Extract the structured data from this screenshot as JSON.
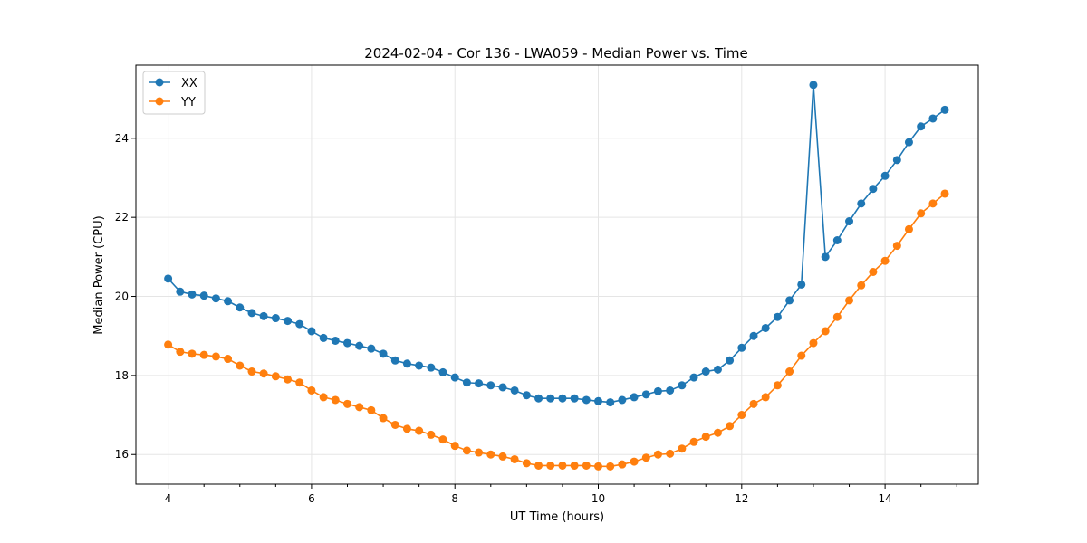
{
  "chart_data": {
    "type": "line",
    "title": "2024-02-04 - Cor 136 - LWA059 - Median Power vs. Time",
    "xlabel": "UT Time (hours)",
    "ylabel": "Median Power (CPU)",
    "xlim": [
      3.55,
      15.3
    ],
    "ylim": [
      15.25,
      25.85
    ],
    "xticks": [
      4,
      6,
      8,
      10,
      12,
      14
    ],
    "yticks": [
      16,
      18,
      20,
      22,
      24
    ],
    "grid": true,
    "legend_position": "top-left",
    "x": [
      4.0,
      4.167,
      4.333,
      4.5,
      4.667,
      4.833,
      5.0,
      5.167,
      5.333,
      5.5,
      5.667,
      5.833,
      6.0,
      6.167,
      6.333,
      6.5,
      6.667,
      6.833,
      7.0,
      7.167,
      7.333,
      7.5,
      7.667,
      7.833,
      8.0,
      8.167,
      8.333,
      8.5,
      8.667,
      8.833,
      9.0,
      9.167,
      9.333,
      9.5,
      9.667,
      9.833,
      10.0,
      10.167,
      10.333,
      10.5,
      10.667,
      10.833,
      11.0,
      11.167,
      11.333,
      11.5,
      11.667,
      11.833,
      12.0,
      12.167,
      12.333,
      12.5,
      12.667,
      12.833,
      13.0,
      13.167,
      13.333,
      13.5,
      13.667,
      13.833,
      14.0,
      14.167,
      14.333,
      14.5,
      14.667,
      14.833
    ],
    "series": [
      {
        "name": "XX",
        "color": "#1f77b4",
        "values": [
          20.45,
          20.12,
          20.05,
          20.02,
          19.95,
          19.88,
          19.72,
          19.58,
          19.5,
          19.45,
          19.38,
          19.3,
          19.12,
          18.95,
          18.88,
          18.82,
          18.75,
          18.68,
          18.55,
          18.38,
          18.3,
          18.25,
          18.2,
          18.08,
          17.95,
          17.82,
          17.8,
          17.75,
          17.7,
          17.62,
          17.5,
          17.42,
          17.42,
          17.42,
          17.42,
          17.38,
          17.35,
          17.32,
          17.38,
          17.45,
          17.52,
          17.6,
          17.62,
          17.75,
          17.95,
          18.1,
          18.15,
          18.38,
          18.7,
          19.0,
          19.2,
          19.48,
          19.9,
          20.3,
          25.35,
          21.0,
          21.42,
          21.9,
          22.35,
          22.72,
          23.05,
          23.45,
          23.9,
          24.3,
          24.5,
          24.72
        ]
      },
      {
        "name": "YY",
        "color": "#ff7f0e",
        "values": [
          18.78,
          18.6,
          18.55,
          18.52,
          18.48,
          18.42,
          18.25,
          18.1,
          18.05,
          17.98,
          17.9,
          17.82,
          17.62,
          17.45,
          17.38,
          17.28,
          17.2,
          17.12,
          16.92,
          16.75,
          16.65,
          16.6,
          16.5,
          16.38,
          16.22,
          16.1,
          16.05,
          16.0,
          15.95,
          15.88,
          15.78,
          15.72,
          15.72,
          15.72,
          15.72,
          15.72,
          15.7,
          15.7,
          15.75,
          15.82,
          15.92,
          16.0,
          16.02,
          16.15,
          16.32,
          16.45,
          16.55,
          16.72,
          17.0,
          17.28,
          17.45,
          17.75,
          18.1,
          18.5,
          18.82,
          19.12,
          19.48,
          19.9,
          20.28,
          20.62,
          20.9,
          21.28,
          21.7,
          22.1,
          22.35,
          22.6
        ]
      }
    ]
  }
}
